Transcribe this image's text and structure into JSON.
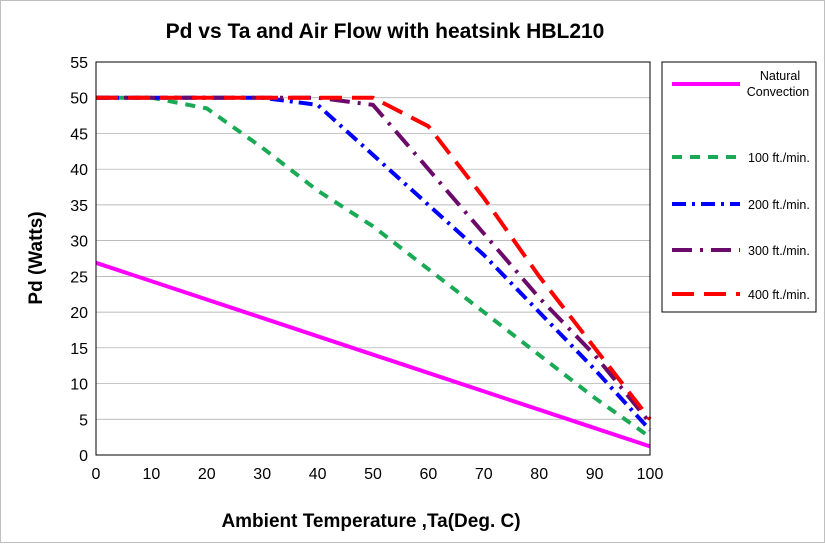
{
  "chart_data": {
    "type": "line",
    "title": "Pd vs Ta and Air Flow with heatsink HBL210",
    "xlabel": "Ambient Temperature ,Ta(Deg. C)",
    "ylabel": "Pd (Watts)",
    "xlim": [
      0,
      100
    ],
    "ylim": [
      0,
      55
    ],
    "xticks": [
      0,
      10,
      20,
      30,
      40,
      50,
      60,
      70,
      80,
      90,
      100
    ],
    "yticks": [
      0,
      5,
      10,
      15,
      20,
      25,
      30,
      35,
      40,
      45,
      50,
      55
    ],
    "grid": true,
    "legend_position": "right",
    "series": [
      {
        "name": "Natural Convection",
        "color": "#ff00ff",
        "style": "solid",
        "points": [
          [
            0,
            26.9
          ],
          [
            100,
            1.2
          ]
        ]
      },
      {
        "name": "100 ft./min.",
        "color": "#1aaa55",
        "style": "dash",
        "points": [
          [
            0,
            50
          ],
          [
            10,
            50
          ],
          [
            20,
            48.5
          ],
          [
            30,
            43
          ],
          [
            40,
            37
          ],
          [
            50,
            32
          ],
          [
            60,
            26
          ],
          [
            70,
            20
          ],
          [
            80,
            14
          ],
          [
            90,
            8
          ],
          [
            100,
            2.5
          ]
        ]
      },
      {
        "name": "200 ft./min.",
        "color": "#0000ff",
        "style": "dashdot",
        "points": [
          [
            0,
            50
          ],
          [
            30,
            50
          ],
          [
            40,
            49
          ],
          [
            50,
            42
          ],
          [
            60,
            35
          ],
          [
            70,
            28
          ],
          [
            80,
            20
          ],
          [
            90,
            12
          ],
          [
            100,
            3.5
          ]
        ]
      },
      {
        "name": "300 ft./min.",
        "color": "#6b0a6b",
        "style": "longdashdot",
        "points": [
          [
            0,
            50
          ],
          [
            40,
            50
          ],
          [
            50,
            49
          ],
          [
            60,
            40
          ],
          [
            70,
            31
          ],
          [
            80,
            22
          ],
          [
            90,
            14
          ],
          [
            100,
            4.5
          ]
        ]
      },
      {
        "name": "400 ft./min.",
        "color": "#ff0000",
        "style": "longdash",
        "points": [
          [
            0,
            50
          ],
          [
            50,
            50
          ],
          [
            60,
            46
          ],
          [
            70,
            36
          ],
          [
            80,
            25
          ],
          [
            90,
            15
          ],
          [
            100,
            5
          ]
        ]
      }
    ]
  }
}
